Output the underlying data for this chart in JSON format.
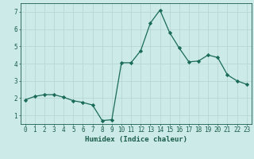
{
  "x": [
    0,
    1,
    2,
    3,
    4,
    5,
    6,
    7,
    8,
    9,
    10,
    11,
    12,
    13,
    14,
    15,
    16,
    17,
    18,
    19,
    20,
    21,
    22,
    23
  ],
  "y": [
    1.9,
    2.1,
    2.2,
    2.2,
    2.05,
    1.85,
    1.75,
    1.6,
    0.7,
    0.75,
    4.05,
    4.05,
    4.75,
    6.35,
    7.1,
    5.8,
    4.9,
    4.1,
    4.15,
    4.5,
    4.35,
    3.35,
    3.0,
    2.8
  ],
  "line_color": "#1a6b5a",
  "marker": "D",
  "marker_size": 2.2,
  "bg_color": "#cceae7",
  "grid_color": "#b8d8d4",
  "xlabel": "Humidex (Indice chaleur)",
  "ylim": [
    0.5,
    7.5
  ],
  "xlim": [
    -0.5,
    23.5
  ],
  "yticks": [
    1,
    2,
    3,
    4,
    5,
    6,
    7
  ],
  "xticks": [
    0,
    1,
    2,
    3,
    4,
    5,
    6,
    7,
    8,
    9,
    10,
    11,
    12,
    13,
    14,
    15,
    16,
    17,
    18,
    19,
    20,
    21,
    22,
    23
  ],
  "xtick_labels": [
    "0",
    "1",
    "2",
    "3",
    "4",
    "5",
    "6",
    "7",
    "8",
    "9",
    "10",
    "11",
    "12",
    "13",
    "14",
    "15",
    "16",
    "17",
    "18",
    "19",
    "20",
    "21",
    "22",
    "23"
  ],
  "tick_color": "#1a5c4a",
  "label_fontsize": 6.5,
  "tick_fontsize": 5.5,
  "linewidth": 0.9
}
